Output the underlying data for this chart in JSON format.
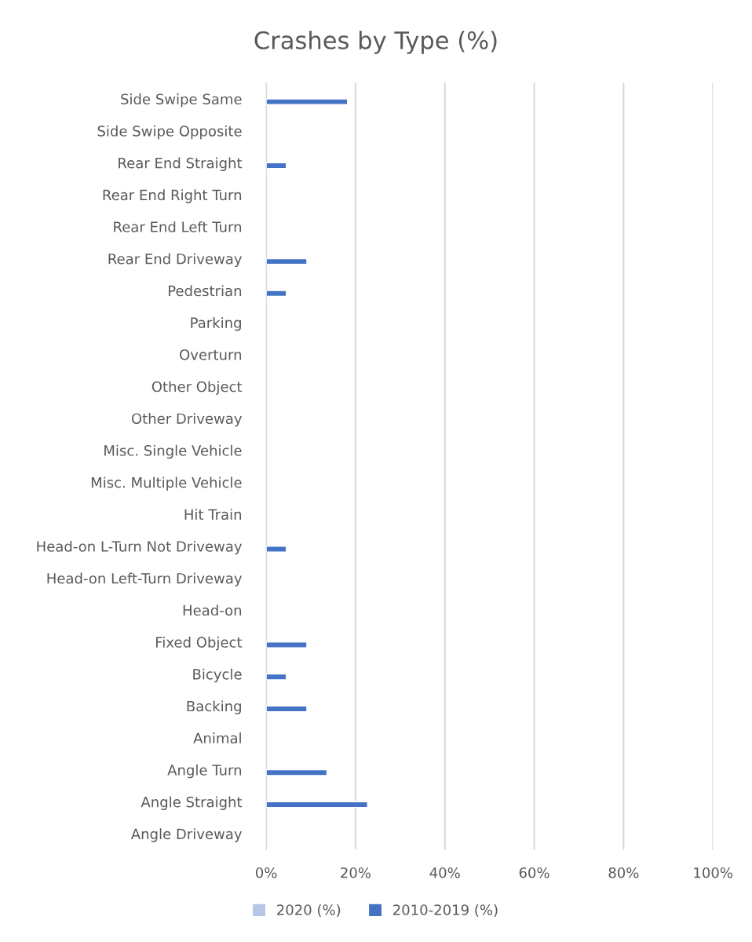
{
  "chart_data": {
    "type": "bar",
    "orientation": "horizontal",
    "title": "Crashes by Type (%)",
    "categories": [
      "Side Swipe Same",
      "Side Swipe Opposite",
      "Rear End Straight",
      "Rear End Right Turn",
      "Rear End Left Turn",
      "Rear End Driveway",
      "Pedestrian",
      "Parking",
      "Overturn",
      "Other Object",
      "Other Driveway",
      "Misc. Single Vehicle",
      "Misc. Multiple Vehicle",
      "Hit Train",
      "Head-on L-Turn Not Driveway",
      "Head-on Left-Turn Driveway",
      "Head-on",
      "Fixed Object",
      "Bicycle",
      "Backing",
      "Animal",
      "Angle Turn",
      "Angle Straight",
      "Angle Driveway"
    ],
    "series": [
      {
        "name": "2020 (%)",
        "color": "#b4c7e7",
        "values": [
          null,
          null,
          null,
          null,
          null,
          null,
          null,
          null,
          null,
          null,
          null,
          null,
          null,
          null,
          null,
          null,
          null,
          null,
          null,
          null,
          null,
          null,
          null,
          null
        ]
      },
      {
        "name": "2010-2019 (%)",
        "color": "#4472c4",
        "values": [
          18.2,
          null,
          4.5,
          null,
          null,
          9.1,
          4.5,
          null,
          null,
          null,
          null,
          null,
          null,
          null,
          4.5,
          null,
          null,
          9.1,
          4.5,
          9.1,
          null,
          13.6,
          22.7,
          null
        ]
      }
    ],
    "xlim": [
      0,
      100
    ],
    "xticks": [
      {
        "value": 0,
        "label": "0%"
      },
      {
        "value": 20,
        "label": "20%"
      },
      {
        "value": 40,
        "label": "40%"
      },
      {
        "value": 60,
        "label": "60%"
      },
      {
        "value": 80,
        "label": "80%"
      },
      {
        "value": 100,
        "label": "100%"
      }
    ],
    "grid": "x",
    "legend": "bottom"
  }
}
